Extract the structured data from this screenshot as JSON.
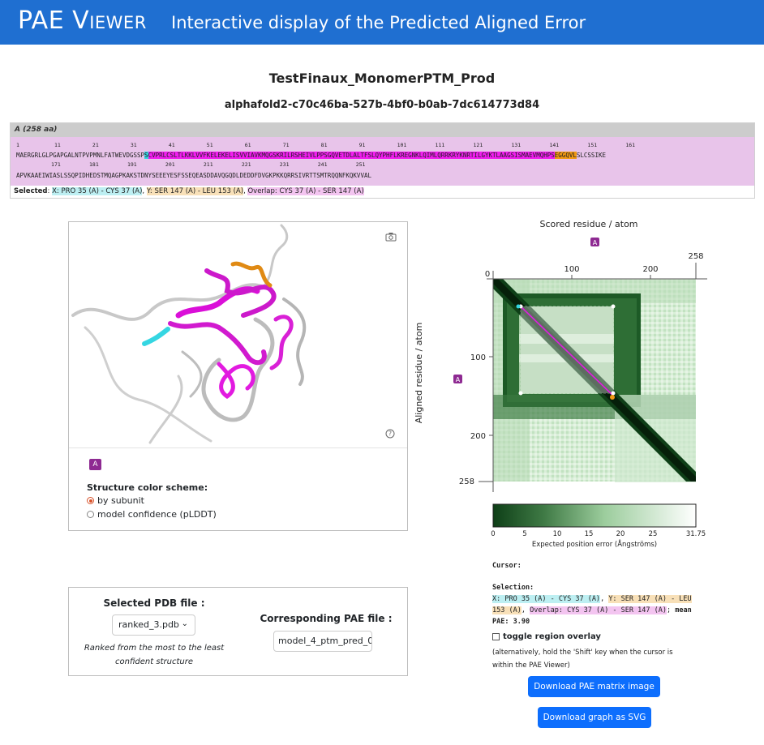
{
  "header": {
    "brand": "PAE Viewer",
    "tagline": "Interactive display of the Predicted Aligned Error"
  },
  "project": {
    "title": "TestFinaux_MonomerPTM_Prod",
    "id": "alphafold2-c70c46ba-527b-4bf0-b0ab-7dc614773d84"
  },
  "sequence": {
    "chain_header": "A (258 aa)",
    "ticks_row1": "1           11          21          31          41          51          61          71          81          91          101         111         121         131         141         151         161",
    "row1_a": "MAERGRLGLPGAPGALNTPVPMNLFATWEVDGSSP",
    "row1_b": "S",
    "row1_c": "CVPRLCSLTLKKLVVFKELEKELISVVIAVKMQGSKRILRSHEIVLPPSGQVETDLALTFSLQYPHFLKREGNKLQIMLQRRKRYKNRTILGYKTLAAGSISMAEVMQHPS",
    "row1_d": "EGGQVL",
    "row1_e": "SLCSSIKE",
    "ticks_row2": "           171         181         191         201         211         221         231         241         251",
    "row2": "APVKAAEIWIASLSSQPIDHEDSTMQAGPKAKSTDNYSEEEYESFSSEQEASDDAVQGQDLDEDDFDVGKPKKQRRSIVRTTSMTRQQNFKQKVVAL",
    "selected_label": "Selected",
    "selected_x": "X: PRO 35 (A) - CYS 37 (A)",
    "selected_y": "Y: SER 147 (A) - LEU 153 (A)",
    "selected_overlap": "Overlap: CYS 37 (A) - SER 147 (A)"
  },
  "viewer": {
    "chain_badge": "A",
    "scheme_title": "Structure color scheme:",
    "option_subunit": "by subunit",
    "option_plddt": "model confidence (pLDDT)",
    "help": "?"
  },
  "files": {
    "pdb_title": "Selected PDB file :",
    "pdb_value": "ranked_3.pdb",
    "pdb_note": "Ranked from the most to the least confident structure",
    "pae_title": "Corresponding PAE file :",
    "pae_value": "model_4_ptm_pred_0"
  },
  "pae": {
    "x_axis_label": "Scored residue / atom",
    "y_axis_label": "Aligned residue / atom",
    "chain_badge": "A",
    "x_ticks": [
      "0",
      "100",
      "200",
      "258"
    ],
    "y_ticks": [
      "0",
      "100",
      "200",
      "258"
    ],
    "colorbar_ticks": [
      "0",
      "5",
      "10",
      "15",
      "20",
      "25",
      "31.75"
    ],
    "colorbar_label": "Expected position error (Ångströms)",
    "colors": {
      "dark": "#0e3f17",
      "light": "#ffffff",
      "x_sel": "#35d6e2",
      "y_sel": "#f29a12",
      "diag": "#e01ee0"
    }
  },
  "info": {
    "cursor_label": "Cursor:",
    "selection_label": "Selection:",
    "x_text": "X: PRO 35 (A) - CYS 37 (A)",
    "y_text": "Y: SER 147 (A) - LEU 153 (A)",
    "overlap_text": "Overlap: CYS 37 (A) - SER 147 (A)",
    "mean_label": "mean PAE:",
    "mean_value": "3.90",
    "toggle_label": "toggle region overlay",
    "toggle_note": "(alternatively, hold the 'Shift' key when the cursor is within the PAE Viewer)",
    "btn_matrix": "Download PAE matrix image",
    "btn_svg": "Download graph as SVG"
  }
}
